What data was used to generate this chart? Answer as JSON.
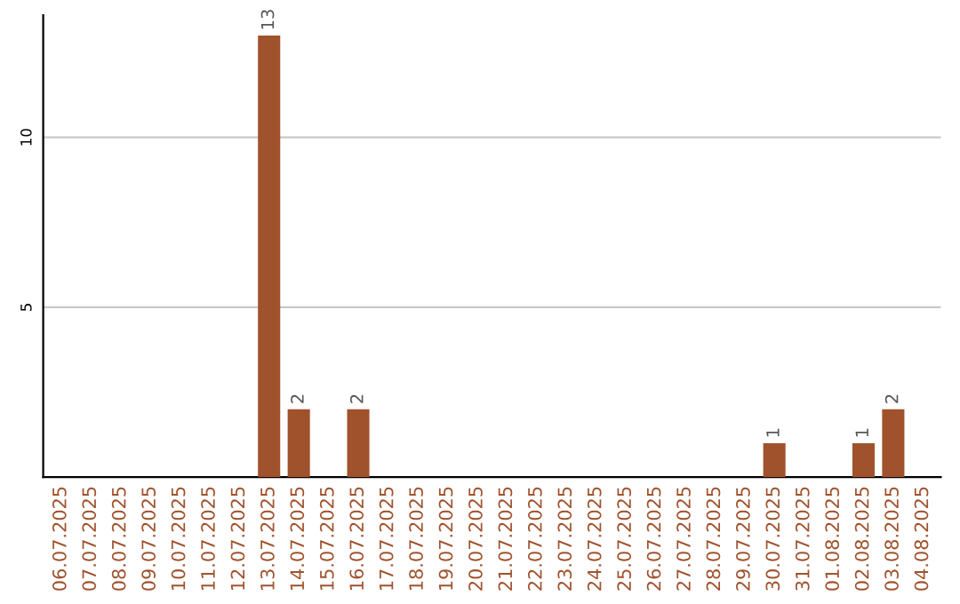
{
  "chart_data": {
    "type": "bar",
    "categories": [
      "06.07.2025",
      "07.07.2025",
      "08.07.2025",
      "09.07.2025",
      "10.07.2025",
      "11.07.2025",
      "12.07.2025",
      "13.07.2025",
      "14.07.2025",
      "15.07.2025",
      "16.07.2025",
      "17.07.2025",
      "18.07.2025",
      "19.07.2025",
      "20.07.2025",
      "21.07.2025",
      "22.07.2025",
      "23.07.2025",
      "24.07.2025",
      "25.07.2025",
      "26.07.2025",
      "27.07.2025",
      "28.07.2025",
      "29.07.2025",
      "30.07.2025",
      "31.07.2025",
      "01.08.2025",
      "02.08.2025",
      "03.08.2025",
      "04.08.2025"
    ],
    "values": [
      0,
      0,
      0,
      0,
      0,
      0,
      0,
      13,
      2,
      0,
      2,
      0,
      0,
      0,
      0,
      0,
      0,
      0,
      0,
      0,
      0,
      0,
      0,
      0,
      1,
      0,
      0,
      1,
      2,
      0
    ],
    "value_labels": [
      null,
      null,
      null,
      null,
      null,
      null,
      null,
      "13",
      "2",
      null,
      "2",
      null,
      null,
      null,
      null,
      null,
      null,
      null,
      null,
      null,
      null,
      null,
      null,
      null,
      "1",
      null,
      null,
      "1",
      "2",
      null
    ],
    "color": "#a0522d",
    "ylim": [
      0,
      13.6
    ],
    "yticks": [
      5,
      10
    ],
    "grid": "y"
  }
}
